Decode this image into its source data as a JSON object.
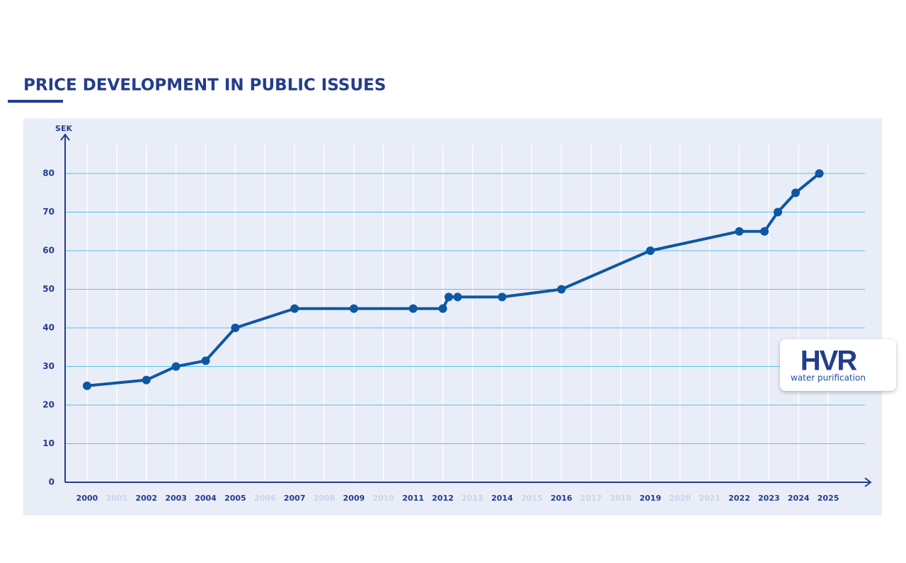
{
  "chart_data": {
    "type": "line",
    "title": "PRICE DEVELOPMENT IN PUBLIC ISSUES",
    "y_label": "SEK",
    "x": [
      2000,
      2002,
      2003,
      2004,
      2005,
      2007,
      2009,
      2011,
      2012,
      2012.2,
      2012.5,
      2014,
      2016,
      2019,
      2022,
      2022.85,
      2023.3,
      2023.9,
      2024.7
    ],
    "series": [
      {
        "name": "Price",
        "color": "#0d57a4",
        "values": [
          25,
          26.5,
          30,
          31.5,
          40,
          45,
          45,
          45,
          45,
          48,
          48,
          48,
          50,
          60,
          65,
          65,
          70,
          75,
          80
        ]
      }
    ],
    "xlim": [
      1999.26,
      2026.43
    ],
    "ylim": [
      0,
      90
    ],
    "xticks": [
      2000,
      2001,
      2002,
      2003,
      2004,
      2005,
      2006,
      2007,
      2008,
      2009,
      2010,
      2011,
      2012,
      2013,
      2014,
      2015,
      2016,
      2017,
      2018,
      2019,
      2020,
      2021,
      2022,
      2023,
      2024,
      2025
    ],
    "muted_xticks": [
      2001,
      2006,
      2008,
      2010,
      2013,
      2015,
      2017,
      2018,
      2020,
      2021
    ],
    "yticks": [
      0,
      10,
      20,
      30,
      40,
      50,
      60,
      70,
      80
    ],
    "grid": true
  },
  "logo": {
    "name": "HVR",
    "tagline": "water purification"
  }
}
